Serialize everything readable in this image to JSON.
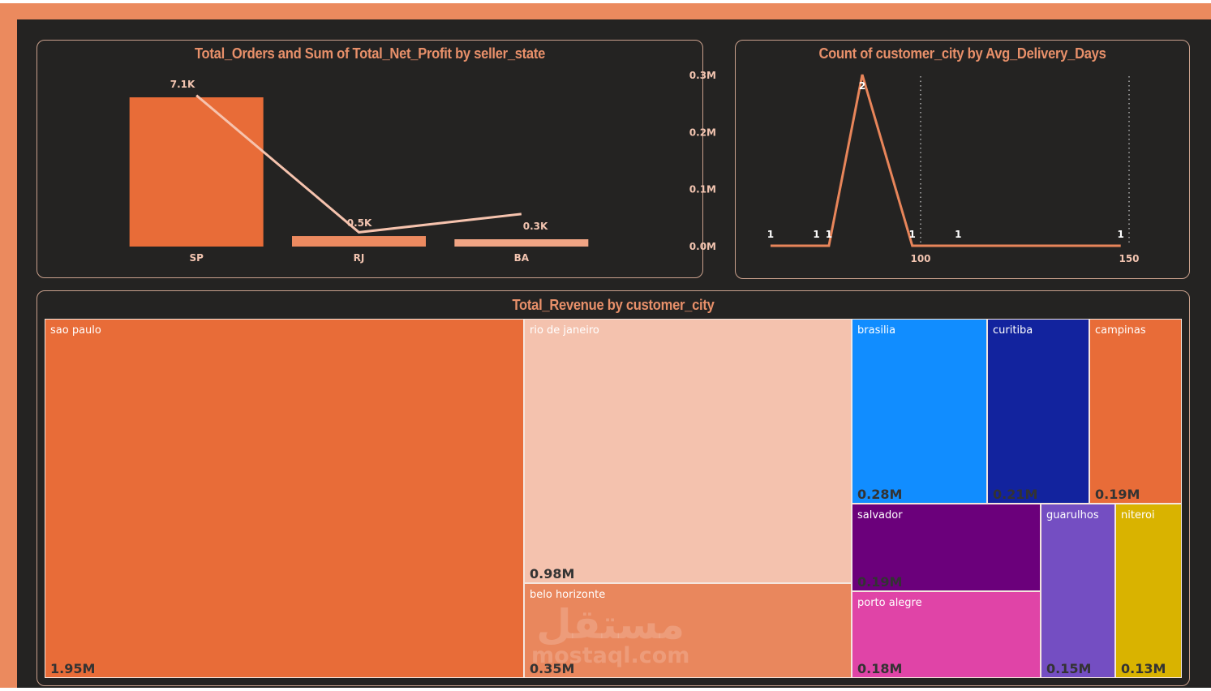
{
  "theme": {
    "frame": "#EB8A5E",
    "background": "#242322",
    "panel_border": "#C9A08C",
    "title_color": "#E8906A",
    "axis_text": "#F2C4B0"
  },
  "charts": {
    "orders_profit": {
      "title": "Total_Orders and Sum of Total_Net_Profit by seller_state"
    },
    "delivery": {
      "title": "Count of customer_city by Avg_Delivery_Days"
    },
    "revenue": {
      "title": "Total_Revenue by customer_city"
    }
  },
  "watermark": {
    "arabic": "مستقل",
    "latin": "mostaql.com"
  },
  "chart_data": [
    {
      "type": "bar",
      "title": "Total_Orders and Sum of Total_Net_Profit by seller_state",
      "categories": [
        "SP",
        "RJ",
        "BA"
      ],
      "series": [
        {
          "name": "Total_Orders",
          "kind": "bar",
          "values": [
            7100,
            500,
            300
          ],
          "labels": [
            "7.1K",
            "0.5K",
            "0.3K"
          ],
          "colors": [
            "#E86C38",
            "#EC8A60",
            "#F0A484"
          ]
        },
        {
          "name": "Sum of Total_Net_Profit",
          "kind": "line",
          "axis": "right",
          "values": [
            265000,
            25000,
            57000
          ],
          "color": "#F6C3AE"
        }
      ],
      "y2_ticks": [
        "0.0M",
        "0.1M",
        "0.2M",
        "0.3M"
      ],
      "y2lim": [
        0,
        300000
      ],
      "ylim": [
        0,
        7800
      ],
      "xlabel": "",
      "ylabel": ""
    },
    {
      "type": "line",
      "title": "Count of customer_city by Avg_Delivery_Days",
      "x": [
        64,
        75,
        78,
        86,
        98,
        109,
        148
      ],
      "values": [
        1,
        1,
        1,
        2,
        1,
        1,
        1
      ],
      "labels": [
        "1",
        "1",
        "1",
        "2",
        "1",
        "1",
        "1"
      ],
      "x_ticks": [
        100,
        150
      ],
      "xlim": [
        60,
        150
      ],
      "ylim": [
        0,
        2
      ],
      "color": "#E8855A",
      "xlabel": "",
      "ylabel": ""
    },
    {
      "type": "treemap",
      "title": "Total_Revenue by customer_city",
      "items": [
        {
          "name": "sao paulo",
          "value": 1.95,
          "label": "1.95M",
          "color": "#E86C38",
          "value_color": "#333333"
        },
        {
          "name": "rio de janeiro",
          "value": 0.98,
          "label": "0.98M",
          "color": "#F4C2AE",
          "value_color": "#333333"
        },
        {
          "name": "belo horizonte",
          "value": 0.35,
          "label": "0.35M",
          "color": "#E9875D",
          "value_color": "#333333"
        },
        {
          "name": "brasilia",
          "value": 0.28,
          "label": "0.28M",
          "color": "#118DFF",
          "value_color": "#333333"
        },
        {
          "name": "curitiba",
          "value": 0.21,
          "label": "0.21M",
          "color": "#12239E",
          "value_color": "#333333"
        },
        {
          "name": "campinas",
          "value": 0.19,
          "label": "0.19M",
          "color": "#E86C38",
          "value_color": "#333333"
        },
        {
          "name": "salvador",
          "value": 0.19,
          "label": "0.19M",
          "color": "#6B007B",
          "value_color": "#333333"
        },
        {
          "name": "porto alegre",
          "value": 0.18,
          "label": "0.18M",
          "color": "#E044A7",
          "value_color": "#333333"
        },
        {
          "name": "guarulhos",
          "value": 0.15,
          "label": "0.15M",
          "color": "#744EC2",
          "value_color": "#333333"
        },
        {
          "name": "niteroi",
          "value": 0.13,
          "label": "0.13M",
          "color": "#D9B300",
          "value_color": "#333333"
        }
      ],
      "unit": "M"
    }
  ]
}
